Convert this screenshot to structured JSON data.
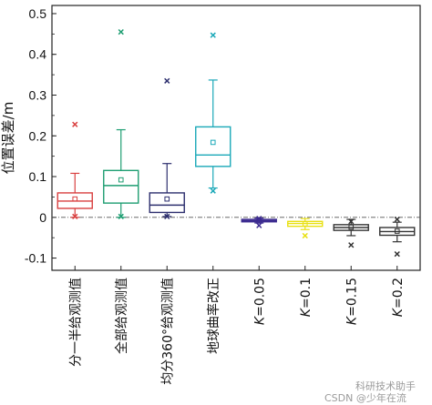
{
  "chart_data": {
    "type": "box",
    "ylabel": "位置误差/m",
    "ylim": [
      -0.13,
      0.52
    ],
    "yticks": [
      -0.1,
      0,
      0.1,
      0.2,
      0.3,
      0.4,
      0.5
    ],
    "ytick_labels": [
      "-0.1",
      "0",
      "0.1",
      "0.2",
      "0.3",
      "0.4",
      "0.5"
    ],
    "zero_reference_line": true,
    "grid": false,
    "categories": [
      {
        "label": "分一半给观测值"
      },
      {
        "label": "全部给观测值"
      },
      {
        "label": "均分360°给观测值"
      },
      {
        "label": "地球曲率改正"
      },
      {
        "label_prefix": "K",
        "label_suffix": "=0.05"
      },
      {
        "label_prefix": "K",
        "label_suffix": "=0.1"
      },
      {
        "label_prefix": "K",
        "label_suffix": "=0.15"
      },
      {
        "label_prefix": "K",
        "label_suffix": "=0.2"
      }
    ],
    "boxes": [
      {
        "color": "#d94040",
        "whisker_low": 0.0,
        "q1": 0.022,
        "median": 0.04,
        "q3": 0.06,
        "whisker_high": 0.108,
        "mean": 0.045,
        "outliers": [
          0.228,
          0.002
        ]
      },
      {
        "color": "#1e9e72",
        "whisker_low": 0.0,
        "q1": 0.035,
        "median": 0.078,
        "q3": 0.115,
        "whisker_high": 0.215,
        "mean": 0.092,
        "outliers": [
          0.455,
          0.002
        ]
      },
      {
        "color": "#2d2f6e",
        "whisker_low": 0.002,
        "q1": 0.012,
        "median": 0.03,
        "q3": 0.06,
        "whisker_high": 0.132,
        "mean": 0.045,
        "outliers": [
          0.335,
          0.002
        ]
      },
      {
        "color": "#1aa8b8",
        "whisker_low": 0.072,
        "q1": 0.125,
        "median": 0.153,
        "q3": 0.222,
        "whisker_high": 0.337,
        "mean": 0.184,
        "outliers": [
          0.447,
          0.065
        ]
      },
      {
        "color": "#3b2a8f",
        "whisker_low": -0.014,
        "q1": -0.011,
        "median": -0.008,
        "q3": -0.005,
        "whisker_high": -0.002,
        "mean": -0.009,
        "outliers": [
          -0.02,
          -0.003
        ]
      },
      {
        "color": "#e8e010",
        "whisker_low": -0.03,
        "q1": -0.022,
        "median": -0.015,
        "q3": -0.01,
        "whisker_high": -0.003,
        "mean": -0.016,
        "outliers": [
          -0.045
        ]
      },
      {
        "color": "#333333",
        "whisker_low": -0.045,
        "q1": -0.032,
        "median": -0.025,
        "q3": -0.018,
        "whisker_high": -0.005,
        "mean": -0.024,
        "outliers": [
          -0.068,
          -0.01
        ]
      },
      {
        "color": "#333333",
        "whisker_low": -0.06,
        "q1": -0.044,
        "median": -0.035,
        "q3": -0.025,
        "whisker_high": -0.012,
        "mean": -0.034,
        "outliers": [
          -0.09,
          -0.005
        ]
      }
    ]
  },
  "watermark": {
    "line1": "科研技术助手",
    "line2": "CSDN @少年在流"
  }
}
